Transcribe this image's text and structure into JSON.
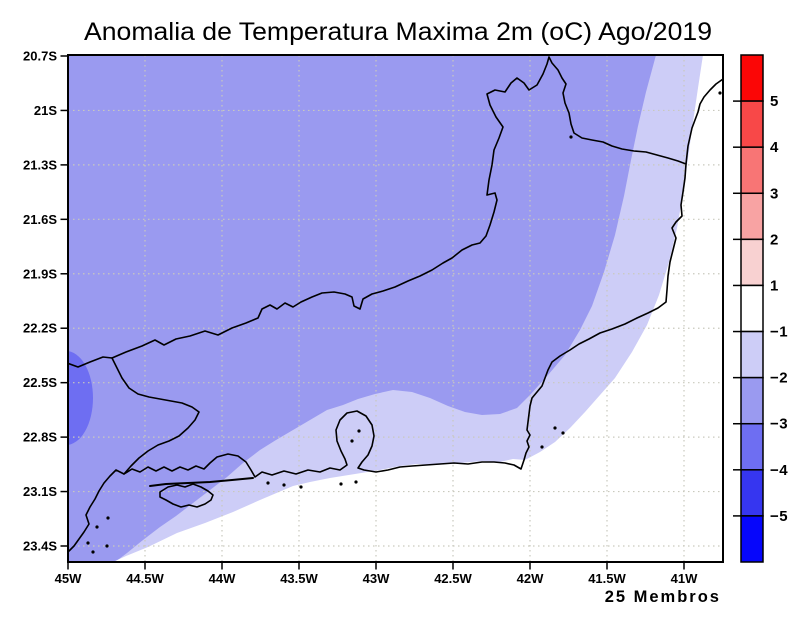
{
  "title": "Anomalia de Temperatura Maxima 2m (oC) Ago/2019",
  "caption": "25 Membros",
  "axes": {
    "lat_tick_labels": [
      "20.7S",
      "21S",
      "21.3S",
      "21.6S",
      "21.9S",
      "22.2S",
      "22.5S",
      "22.8S",
      "23.1S",
      "23.4S"
    ],
    "lon_tick_labels": [
      "45W",
      "44.5W",
      "44W",
      "43.5W",
      "43W",
      "42.5W",
      "42W",
      "41.5W",
      "41W"
    ]
  },
  "colorbar": {
    "boundary_labels": [
      "5",
      "4",
      "3",
      "2",
      "1",
      "−1",
      "−2",
      "−3",
      "−4",
      "−5"
    ],
    "segment_colors": [
      "#fb0606",
      "#f84848",
      "#f87575",
      "#f8a3a3",
      "#f8d1d1",
      "#ffffff",
      "#cdcdf7",
      "#9a9af0",
      "#6e6ef2",
      "#3636f0",
      "#0606fb"
    ]
  },
  "grid_color": "#c9c9bd",
  "chart_data": {
    "type": "heatmap",
    "subtype": "filled_contour_map",
    "title": "Anomalia de Temperatura Maxima 2m (oC) Ago/2019",
    "units": "oC",
    "x_axis": {
      "ticks": [
        "45W",
        "44.5W",
        "44W",
        "43.5W",
        "43W",
        "42.5W",
        "42W",
        "41.5W",
        "41W"
      ],
      "range": [
        "45W",
        "40.75W"
      ]
    },
    "y_axis": {
      "ticks": [
        "20.7S",
        "21S",
        "21.3S",
        "21.6S",
        "21.9S",
        "22.2S",
        "22.5S",
        "22.8S",
        "23.1S",
        "23.4S"
      ],
      "range": [
        "20.7S",
        "23.49S"
      ]
    },
    "contour_levels": [
      -5,
      -4,
      -3,
      -2,
      -1,
      1,
      2,
      3,
      4,
      5
    ],
    "palette": [
      "#fb0606",
      "#f84848",
      "#f87575",
      "#f8a3a3",
      "#f8d1d1",
      "#ffffff",
      "#cdcdf7",
      "#9a9af0",
      "#6e6ef2",
      "#3636f0",
      "#0606fb"
    ],
    "regions": [
      {
        "value_range": "-3 to -2",
        "color": "#9a9af0",
        "coverage": "most of the domain: interior, northwest and center"
      },
      {
        "value_range": "-2 to -1",
        "color": "#cdcdf7",
        "coverage": "curved band along the east coast and the southern coastal strip"
      },
      {
        "value_range": "-1 to 1",
        "color": "#ffffff",
        "coverage": "narrow strip along the far east coast and the southeast ocean corner"
      },
      {
        "value_range": "-4 to -3",
        "color": "#6e6ef2",
        "coverage": "small pocket on the west edge near 22.6S"
      }
    ],
    "ensemble_members": 25,
    "legend_position": "right",
    "grid": "dotted"
  }
}
